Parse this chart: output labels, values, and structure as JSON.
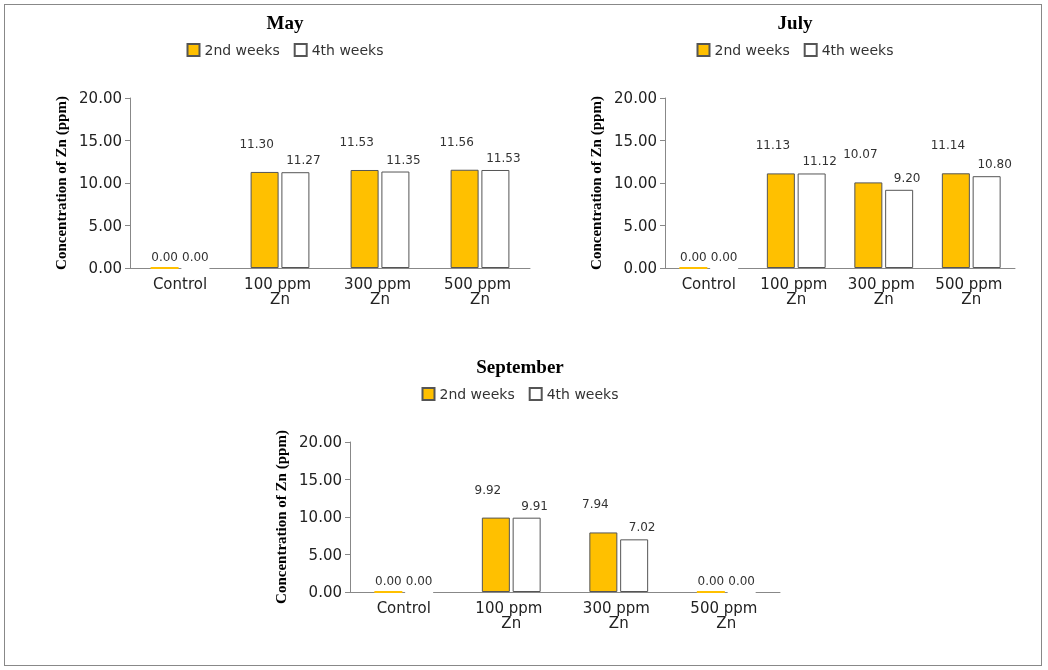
{
  "chart_data": [
    {
      "type": "bar",
      "title": "May",
      "ylabel": "Concentration of Zn (ppm)",
      "categories": [
        "Control",
        "100 ppm Zn",
        "300 ppm Zn",
        "500 ppm Zn"
      ],
      "ylim": [
        0,
        20
      ],
      "yticks": [
        {
          "value": 0,
          "label": "0.00"
        },
        {
          "value": 5,
          "label": "5.00"
        },
        {
          "value": 10,
          "label": "10.00"
        },
        {
          "value": 15,
          "label": "15.00"
        },
        {
          "value": 20,
          "label": "20.00"
        }
      ],
      "grid": false,
      "legend": "top",
      "series": [
        {
          "name": "2nd weeks",
          "color": "#ffc000",
          "values": [
            0,
            11.3,
            11.53,
            11.56
          ],
          "value_labels": [
            "0.00",
            "11.30",
            "11.53",
            "11.56"
          ]
        },
        {
          "name": "4th weeks",
          "color": "#ffffff",
          "values": [
            0,
            11.27,
            11.35,
            11.53
          ],
          "value_labels": [
            "0.00",
            "11.27",
            "11.35",
            "11.53"
          ]
        }
      ]
    },
    {
      "type": "bar",
      "title": "July",
      "ylabel": "Concentration of Zn (ppm)",
      "categories": [
        "Control",
        "100 ppm Zn",
        "300 ppm Zn",
        "500 ppm Zn"
      ],
      "ylim": [
        0,
        20
      ],
      "yticks": [
        {
          "value": 0,
          "label": "0.00"
        },
        {
          "value": 5,
          "label": "5.00"
        },
        {
          "value": 10,
          "label": "10.00"
        },
        {
          "value": 15,
          "label": "15.00"
        },
        {
          "value": 20,
          "label": "20.00"
        }
      ],
      "grid": false,
      "legend": "top",
      "series": [
        {
          "name": "2nd weeks",
          "color": "#ffc000",
          "values": [
            0,
            11.13,
            10.07,
            11.14
          ],
          "value_labels": [
            "0.00",
            "11.13",
            "10.07",
            "11.14"
          ]
        },
        {
          "name": "4th weeks",
          "color": "#ffffff",
          "values": [
            0,
            11.12,
            9.2,
            10.8
          ],
          "value_labels": [
            "0.00",
            "11.12",
            "9.20",
            "10.80"
          ]
        }
      ]
    },
    {
      "type": "bar",
      "title": "September",
      "ylabel": "Concentration of Zn (ppm)",
      "categories": [
        "Control",
        "100 ppm Zn",
        "300 ppm Zn",
        "500 ppm Zn"
      ],
      "ylim": [
        0,
        20
      ],
      "yticks": [
        {
          "value": 0,
          "label": "0.00"
        },
        {
          "value": 5,
          "label": "5.00"
        },
        {
          "value": 10,
          "label": "10.00"
        },
        {
          "value": 15,
          "label": "15.00"
        },
        {
          "value": 20,
          "label": "20.00"
        }
      ],
      "grid": false,
      "legend": "top",
      "series": [
        {
          "name": "2nd weeks",
          "color": "#ffc000",
          "values": [
            0,
            9.92,
            7.94,
            0
          ],
          "value_labels": [
            "0.00",
            "9.92",
            "7.94",
            "0.00"
          ]
        },
        {
          "name": "4th weeks",
          "color": "#ffffff",
          "values": [
            0,
            9.91,
            7.02,
            0
          ],
          "value_labels": [
            "0.00",
            "9.91",
            "7.02",
            "0.00"
          ]
        }
      ]
    }
  ]
}
